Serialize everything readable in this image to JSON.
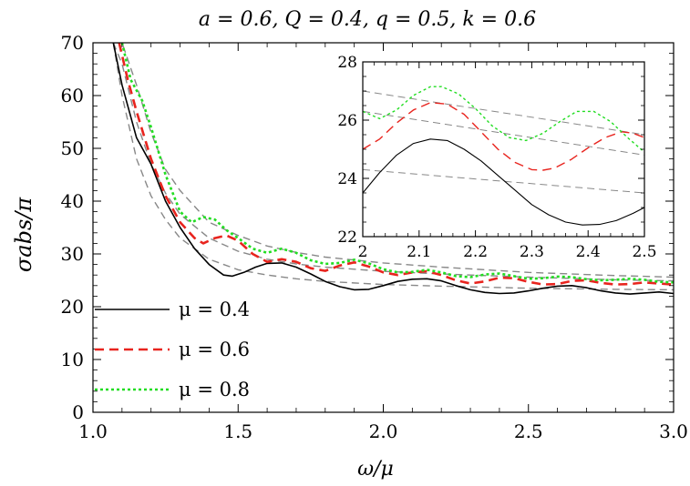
{
  "chart_data": [
    {
      "type": "line",
      "title": "a = 0.6, Q = 0.4, q = 0.5, k = 0.6",
      "xlabel": "ω/μ",
      "ylabel": "σabs/π",
      "xlim": [
        1.0,
        3.0
      ],
      "ylim": [
        0,
        70
      ],
      "x_ticks": [
        "1.0",
        "1.5",
        "2.0",
        "2.5",
        "3.0"
      ],
      "y_ticks": [
        "0",
        "10",
        "20",
        "30",
        "40",
        "50",
        "60",
        "70"
      ],
      "grid": false,
      "legend_position": "bottom-left",
      "series": [
        {
          "name": "μ = 0.4",
          "color": "#000000",
          "style": "solid",
          "x": [
            1.07,
            1.1,
            1.15,
            1.2,
            1.25,
            1.3,
            1.35,
            1.4,
            1.45,
            1.48,
            1.52,
            1.56,
            1.6,
            1.65,
            1.7,
            1.75,
            1.8,
            1.85,
            1.9,
            1.95,
            2.0,
            2.05,
            2.1,
            2.15,
            2.2,
            2.25,
            2.3,
            2.35,
            2.4,
            2.45,
            2.5,
            2.55,
            2.6,
            2.65,
            2.7,
            2.75,
            2.8,
            2.85,
            2.9,
            2.95,
            3.0
          ],
          "values": [
            70,
            62,
            52,
            47,
            40,
            35,
            31,
            28,
            26,
            25.8,
            26.5,
            27.5,
            28.2,
            28.3,
            27.5,
            26.2,
            24.8,
            23.8,
            23.2,
            23.3,
            24.0,
            24.8,
            25.2,
            25.3,
            24.9,
            24.0,
            23.2,
            22.7,
            22.5,
            22.6,
            23.0,
            23.5,
            23.9,
            24.0,
            23.6,
            23.0,
            22.6,
            22.4,
            22.6,
            22.8,
            22.5
          ]
        },
        {
          "name": "μ = 0.6",
          "color": "#e8241e",
          "style": "dashed",
          "x": [
            1.09,
            1.12,
            1.15,
            1.2,
            1.25,
            1.3,
            1.35,
            1.38,
            1.42,
            1.46,
            1.5,
            1.55,
            1.6,
            1.65,
            1.7,
            1.75,
            1.8,
            1.85,
            1.9,
            1.95,
            2.0,
            2.05,
            2.1,
            2.15,
            2.2,
            2.25,
            2.3,
            2.35,
            2.4,
            2.45,
            2.5,
            2.55,
            2.6,
            2.65,
            2.7,
            2.75,
            2.8,
            2.85,
            2.9,
            2.95,
            3.0
          ],
          "values": [
            70,
            63,
            57,
            48,
            41,
            36,
            33,
            32,
            33,
            33.5,
            32.5,
            30,
            28.5,
            29,
            28.5,
            27.3,
            26.8,
            27.8,
            28.4,
            27.6,
            26.5,
            26.0,
            26.5,
            26.7,
            26.0,
            25.0,
            24.4,
            24.8,
            25.5,
            25.4,
            24.7,
            24.2,
            24.3,
            24.9,
            25.0,
            24.5,
            24.2,
            24.3,
            24.6,
            24.4,
            24.2
          ]
        },
        {
          "name": "μ = 0.8",
          "color": "#22dd22",
          "style": "dotted",
          "x": [
            1.1,
            1.13,
            1.17,
            1.2,
            1.25,
            1.3,
            1.34,
            1.38,
            1.42,
            1.46,
            1.5,
            1.55,
            1.6,
            1.65,
            1.7,
            1.75,
            1.8,
            1.85,
            1.9,
            1.95,
            2.0,
            2.05,
            2.1,
            2.15,
            2.2,
            2.25,
            2.3,
            2.35,
            2.4,
            2.45,
            2.5,
            2.55,
            2.6,
            2.65,
            2.7,
            2.75,
            2.8,
            2.85,
            2.9,
            2.95,
            3.0
          ],
          "values": [
            70,
            63,
            59,
            54,
            45,
            38,
            36,
            37,
            36.5,
            34.5,
            33,
            31,
            30.2,
            31,
            30.2,
            28.8,
            28.1,
            28.3,
            28.9,
            28.2,
            27.1,
            26.5,
            26.6,
            27.0,
            26.5,
            25.8,
            25.6,
            26.1,
            26.3,
            25.8,
            25.3,
            25.4,
            25.7,
            25.6,
            25.2,
            25.0,
            25.1,
            25.3,
            25.1,
            24.7,
            24.6
          ]
        }
      ],
      "reference_curves": {
        "color": "#888888",
        "style": "dashed",
        "x": [
          1.07,
          1.1,
          1.15,
          1.2,
          1.25,
          1.3,
          1.4,
          1.5,
          1.6,
          1.7,
          1.8,
          2.0,
          2.2,
          2.5,
          2.8,
          3.0
        ],
        "curves": [
          [
            70,
            60,
            48,
            41,
            36.5,
            33,
            29,
            27,
            26,
            25.3,
            24.8,
            24.2,
            23.9,
            23.5,
            23.3,
            23.2
          ],
          [
            70,
            66,
            55,
            47,
            41.5,
            37.5,
            33,
            30.5,
            29,
            28.1,
            27.5,
            26.7,
            26.2,
            25.6,
            25.1,
            24.9
          ],
          [
            70,
            70,
            62,
            53,
            46,
            42,
            36,
            33.5,
            31.5,
            30.3,
            29.4,
            28.3,
            27.5,
            26.5,
            25.9,
            25.6
          ]
        ]
      }
    },
    {
      "type": "line",
      "title": "",
      "xlim": [
        2.0,
        2.5
      ],
      "ylim": [
        22,
        28
      ],
      "x_ticks": [
        "2",
        "2.1",
        "2.2",
        "2.3",
        "2.4",
        "2.5"
      ],
      "y_ticks": [
        "22",
        "24",
        "26",
        "28"
      ],
      "legend_position": "none",
      "series": [
        {
          "name": "μ = 0.4",
          "color": "#000000",
          "style": "solid",
          "x": [
            2.0,
            2.03,
            2.06,
            2.09,
            2.12,
            2.15,
            2.18,
            2.21,
            2.24,
            2.27,
            2.3,
            2.33,
            2.36,
            2.39,
            2.42,
            2.45,
            2.48,
            2.5
          ],
          "values": [
            23.5,
            24.2,
            24.8,
            25.2,
            25.35,
            25.3,
            25.0,
            24.6,
            24.1,
            23.6,
            23.1,
            22.75,
            22.5,
            22.4,
            22.42,
            22.55,
            22.8,
            23.0
          ]
        },
        {
          "name": "μ = 0.6",
          "color": "#e8241e",
          "style": "dashed",
          "x": [
            2.0,
            2.03,
            2.06,
            2.09,
            2.12,
            2.15,
            2.18,
            2.21,
            2.24,
            2.27,
            2.3,
            2.32,
            2.34,
            2.37,
            2.4,
            2.43,
            2.46,
            2.48,
            2.5
          ],
          "values": [
            25.0,
            25.35,
            25.9,
            26.35,
            26.6,
            26.55,
            26.2,
            25.6,
            25.0,
            24.55,
            24.3,
            24.28,
            24.35,
            24.65,
            25.05,
            25.4,
            25.6,
            25.55,
            25.4
          ]
        },
        {
          "name": "μ = 0.8",
          "color": "#22dd22",
          "style": "dotted",
          "x": [
            2.0,
            2.03,
            2.06,
            2.09,
            2.12,
            2.14,
            2.17,
            2.2,
            2.23,
            2.26,
            2.29,
            2.32,
            2.35,
            2.38,
            2.41,
            2.44,
            2.47,
            2.5
          ],
          "values": [
            26.3,
            26.05,
            26.35,
            26.85,
            27.15,
            27.15,
            26.9,
            26.4,
            25.8,
            25.4,
            25.3,
            25.55,
            25.95,
            26.3,
            26.3,
            25.95,
            25.4,
            24.9
          ]
        }
      ],
      "reference_curves": {
        "color": "#888888",
        "style": "dashed",
        "x": [
          2.0,
          2.5
        ],
        "curves": [
          [
            24.3,
            23.5
          ],
          [
            26.3,
            24.8
          ],
          [
            27.0,
            25.5
          ]
        ]
      }
    }
  ]
}
